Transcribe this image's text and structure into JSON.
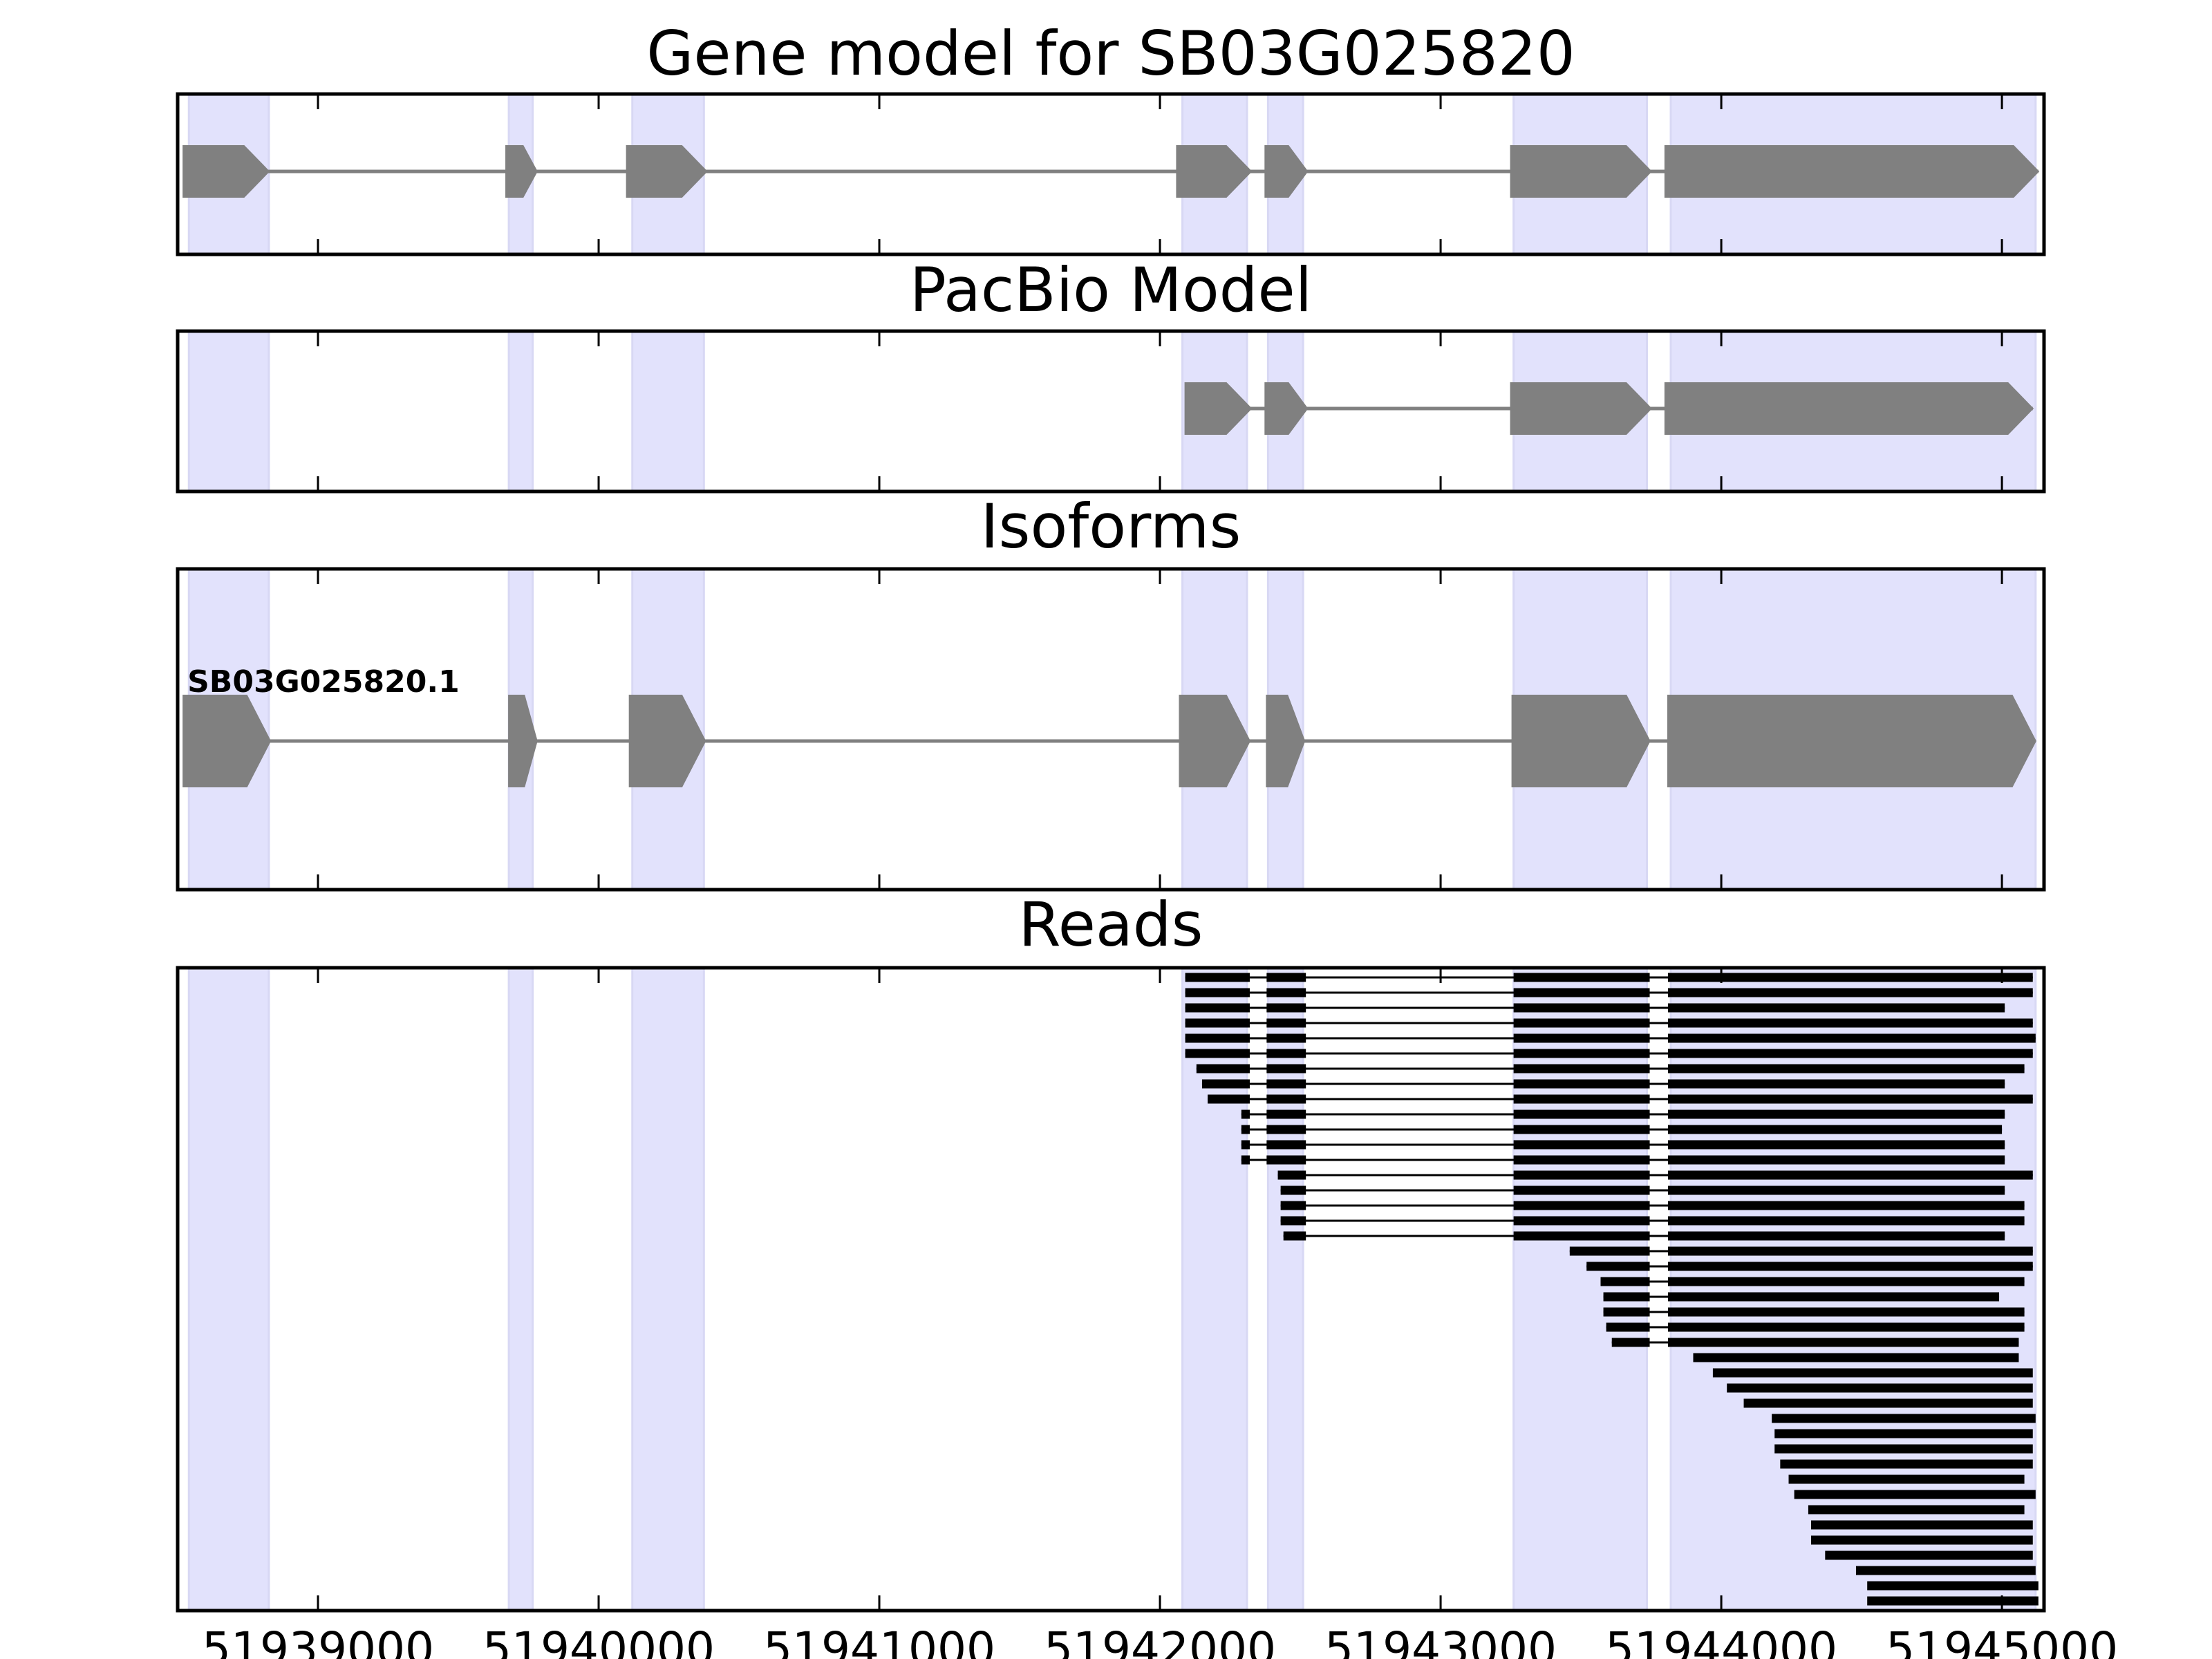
{
  "chart_data": {
    "type": "gene-track",
    "xlim": [
      51938500,
      51945150
    ],
    "xticks": [
      51939000,
      51940000,
      51941000,
      51942000,
      51943000,
      51944000,
      51945000
    ],
    "colors": {
      "exon": "#808080",
      "intron": "#808080",
      "highlight": "#e2e2fc",
      "read": "#000000",
      "frame": "#000000"
    },
    "highlight_regions": [
      [
        51938540,
        51938825
      ],
      [
        51939680,
        51939765
      ],
      [
        51940120,
        51940375
      ],
      [
        51942080,
        51942310
      ],
      [
        51942385,
        51942510
      ],
      [
        51943260,
        51943735
      ],
      [
        51943820,
        51945120
      ]
    ],
    "panels": [
      {
        "title": "Gene model for SB03G025820",
        "strand": "+",
        "exons": [
          [
            51938520,
            51938825
          ],
          [
            51939670,
            51939780
          ],
          [
            51940100,
            51940385
          ],
          [
            51942060,
            51942325
          ],
          [
            51942375,
            51942525
          ],
          [
            51943250,
            51943750
          ],
          [
            51943800,
            51945130
          ]
        ]
      },
      {
        "title": "PacBio Model",
        "strand": "+",
        "exons": [
          [
            51942090,
            51942325
          ],
          [
            51942375,
            51942525
          ],
          [
            51943250,
            51943750
          ],
          [
            51943800,
            51945110
          ]
        ]
      },
      {
        "title": "Isoforms",
        "isoforms": [
          {
            "name": "SB03G025820.1",
            "strand": "+",
            "exons": [
              [
                51938520,
                51938830
              ],
              [
                51939680,
                51939780
              ],
              [
                51940110,
                51940380
              ],
              [
                51942070,
                51942320
              ],
              [
                51942380,
                51942515
              ],
              [
                51943255,
                51943745
              ],
              [
                51943810,
                51945120
              ]
            ]
          }
        ]
      },
      {
        "title": "Reads",
        "reads": [
          [
            [
              51942090,
              51942320
            ],
            [
              51942380,
              51942520
            ],
            [
              51943260,
              51943745
            ],
            [
              51943810,
              51945110
            ]
          ],
          [
            [
              51942090,
              51942320
            ],
            [
              51942380,
              51942520
            ],
            [
              51943260,
              51943745
            ],
            [
              51943810,
              51945110
            ]
          ],
          [
            [
              51942090,
              51942320
            ],
            [
              51942380,
              51942520
            ],
            [
              51943260,
              51943745
            ],
            [
              51943810,
              51945010
            ]
          ],
          [
            [
              51942090,
              51942320
            ],
            [
              51942380,
              51942520
            ],
            [
              51943260,
              51943745
            ],
            [
              51943810,
              51945110
            ]
          ],
          [
            [
              51942090,
              51942320
            ],
            [
              51942380,
              51942520
            ],
            [
              51943260,
              51943745
            ],
            [
              51943810,
              51945120
            ]
          ],
          [
            [
              51942090,
              51942320
            ],
            [
              51942380,
              51942520
            ],
            [
              51943260,
              51943745
            ],
            [
              51943810,
              51945110
            ]
          ],
          [
            [
              51942130,
              51942320
            ],
            [
              51942380,
              51942520
            ],
            [
              51943260,
              51943745
            ],
            [
              51943810,
              51945080
            ]
          ],
          [
            [
              51942150,
              51942320
            ],
            [
              51942380,
              51942520
            ],
            [
              51943260,
              51943745
            ],
            [
              51943810,
              51945010
            ]
          ],
          [
            [
              51942170,
              51942320
            ],
            [
              51942380,
              51942520
            ],
            [
              51943260,
              51943745
            ],
            [
              51943810,
              51945110
            ]
          ],
          [
            [
              51942290,
              51942320
            ],
            [
              51942380,
              51942520
            ],
            [
              51943260,
              51943745
            ],
            [
              51943810,
              51945010
            ]
          ],
          [
            [
              51942290,
              51942320
            ],
            [
              51942380,
              51942520
            ],
            [
              51943260,
              51943745
            ],
            [
              51943810,
              51945000
            ]
          ],
          [
            [
              51942290,
              51942320
            ],
            [
              51942380,
              51942520
            ],
            [
              51943260,
              51943745
            ],
            [
              51943810,
              51945010
            ]
          ],
          [
            [
              51942290,
              51942320
            ],
            [
              51942380,
              51942520
            ],
            [
              51943260,
              51943745
            ],
            [
              51943810,
              51945010
            ]
          ],
          [
            [
              51942420,
              51942520
            ],
            [
              51943260,
              51943745
            ],
            [
              51943810,
              51945110
            ]
          ],
          [
            [
              51942430,
              51942520
            ],
            [
              51943260,
              51943745
            ],
            [
              51943810,
              51945010
            ]
          ],
          [
            [
              51942430,
              51942520
            ],
            [
              51943260,
              51943745
            ],
            [
              51943810,
              51945080
            ]
          ],
          [
            [
              51942430,
              51942520
            ],
            [
              51943260,
              51943745
            ],
            [
              51943810,
              51945080
            ]
          ],
          [
            [
              51942440,
              51942520
            ],
            [
              51943260,
              51943745
            ],
            [
              51943810,
              51945010
            ]
          ],
          [
            [
              51943460,
              51943745
            ],
            [
              51943810,
              51945110
            ]
          ],
          [
            [
              51943520,
              51943745
            ],
            [
              51943810,
              51945110
            ]
          ],
          [
            [
              51943570,
              51943745
            ],
            [
              51943810,
              51945080
            ]
          ],
          [
            [
              51943580,
              51943745
            ],
            [
              51943810,
              51944990
            ]
          ],
          [
            [
              51943580,
              51943745
            ],
            [
              51943810,
              51945080
            ]
          ],
          [
            [
              51943590,
              51943745
            ],
            [
              51943810,
              51945080
            ]
          ],
          [
            [
              51943610,
              51943745
            ],
            [
              51943810,
              51945060
            ]
          ],
          [
            [
              51943900,
              51945060
            ]
          ],
          [
            [
              51943970,
              51945110
            ]
          ],
          [
            [
              51944020,
              51945110
            ]
          ],
          [
            [
              51944080,
              51945110
            ]
          ],
          [
            [
              51944180,
              51945120
            ]
          ],
          [
            [
              51944190,
              51945110
            ]
          ],
          [
            [
              51944190,
              51945110
            ]
          ],
          [
            [
              51944210,
              51945110
            ]
          ],
          [
            [
              51944240,
              51945080
            ]
          ],
          [
            [
              51944260,
              51945120
            ]
          ],
          [
            [
              51944310,
              51945080
            ]
          ],
          [
            [
              51944320,
              51945110
            ]
          ],
          [
            [
              51944320,
              51945110
            ]
          ],
          [
            [
              51944370,
              51945110
            ]
          ],
          [
            [
              51944480,
              51945120
            ]
          ],
          [
            [
              51944520,
              51945130
            ]
          ],
          [
            [
              51944520,
              51945130
            ]
          ]
        ]
      }
    ]
  }
}
